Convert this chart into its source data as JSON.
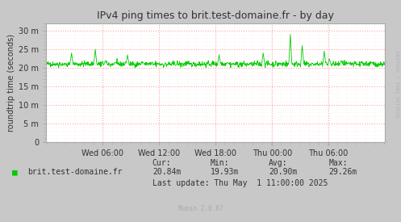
{
  "title": "IPv4 ping times to brit.test-domaine.fr - by day",
  "ylabel": "roundtrip time (seconds)",
  "right_label": "RRDTOOL / TOBI OETIKER",
  "bottom_label": "Munin 2.0.67",
  "legend_label": "brit.test-domaine.fr",
  "legend_color": "#00cc00",
  "cur": "20.84m",
  "min_val": "19.93m",
  "avg": "20.90m",
  "max_val": "29.26m",
  "last_update": "Last update: Thu May  1 11:00:00 2025",
  "bg_color": "#c8c8c8",
  "plot_bg_color": "#ffffff",
  "grid_color": "#ff9999",
  "minor_grid_color": "#ffdddd",
  "border_color": "#aaaaaa",
  "line_color": "#00cc00",
  "text_color": "#333333",
  "faded_color": "#aaaaaa",
  "ytick_labels": [
    "0",
    "5 m",
    "10 m",
    "15 m",
    "20 m",
    "25 m",
    "30 m"
  ],
  "ytick_values": [
    0,
    5,
    10,
    15,
    20,
    25,
    30
  ],
  "xtick_labels": [
    "Wed 06:00",
    "Wed 12:00",
    "Wed 18:00",
    "Thu 00:00",
    "Thu 06:00"
  ],
  "xtick_positions": [
    0.167,
    0.333,
    0.5,
    0.667,
    0.833
  ],
  "xlim": [
    0,
    1
  ],
  "ylim": [
    0,
    32
  ],
  "baseline_ms": 21.0,
  "noise_std": 0.35,
  "spike_positions": [
    0.075,
    0.125,
    0.145,
    0.175,
    0.205,
    0.24,
    0.285,
    0.51,
    0.535,
    0.64,
    0.72,
    0.755,
    0.82,
    0.835,
    0.87,
    0.93,
    0.96
  ],
  "spike_heights": [
    24.0,
    20.5,
    25.0,
    22.0,
    21.5,
    23.5,
    21.5,
    23.5,
    21.5,
    24.0,
    29.0,
    26.0,
    24.5,
    22.5,
    22.0,
    21.5,
    21.5
  ],
  "n_points": 1000,
  "title_fontsize": 9,
  "tick_fontsize": 7,
  "label_fontsize": 7
}
